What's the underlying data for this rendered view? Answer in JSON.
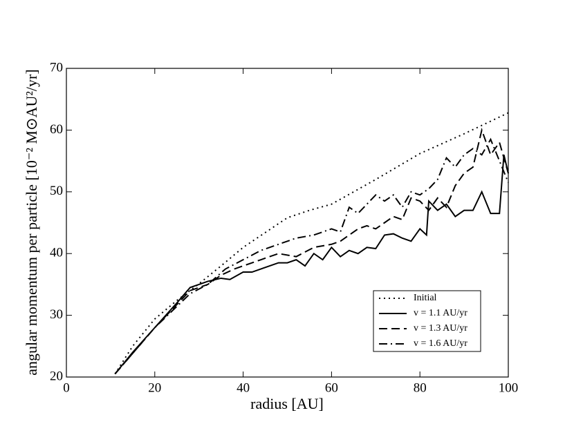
{
  "chart_data": {
    "type": "line",
    "xlabel": "radius [AU]",
    "ylabel": "angular momentum per particle [10⁻² M⊙AU²/yr]",
    "xlim": [
      0,
      100
    ],
    "xticks": [
      0,
      20,
      40,
      60,
      80,
      100
    ],
    "ylim": [
      20,
      70
    ],
    "yticks": [
      20,
      30,
      40,
      50,
      60,
      70
    ],
    "legend": "lower right",
    "series": [
      {
        "name": "Initial",
        "color": "#000000",
        "dash": "dotted",
        "x": [
          11,
          15,
          20,
          25,
          30,
          35,
          40,
          45,
          50,
          55,
          60,
          65,
          70,
          75,
          80,
          85,
          90,
          95,
          100
        ],
        "values": [
          20.5,
          25.0,
          29.4,
          32.4,
          35.1,
          38.0,
          41.0,
          43.4,
          45.8,
          47.0,
          48.0,
          50.0,
          52.0,
          54.1,
          56.2,
          57.8,
          59.4,
          61.1,
          62.8
        ]
      },
      {
        "name": "v = 1.1 AU/yr",
        "color": "#000000",
        "dash": "solid",
        "x": [
          11,
          15,
          20,
          25,
          28,
          30,
          32,
          35,
          37,
          40,
          42,
          44,
          46,
          48,
          50,
          52,
          54,
          56,
          58,
          60,
          62,
          64,
          66,
          68,
          70,
          72,
          74,
          76,
          78,
          80,
          81.5,
          82,
          84,
          86,
          88,
          90,
          92,
          94,
          96,
          98,
          99,
          100
        ],
        "values": [
          20.5,
          24,
          28,
          32,
          34.5,
          35,
          35.5,
          36,
          35.8,
          37,
          37,
          37.5,
          38,
          38.5,
          38.5,
          39,
          38,
          40,
          39,
          41,
          39.5,
          40.5,
          40,
          41,
          40.8,
          43,
          43.2,
          42.5,
          42,
          44,
          43,
          48.5,
          47,
          48,
          46,
          47,
          47,
          50,
          46.5,
          46.5,
          56,
          53
        ]
      },
      {
        "name": "v = 1.3 AU/yr",
        "color": "#000000",
        "dash": "dashed",
        "x": [
          11,
          20,
          28,
          32,
          35,
          38,
          40,
          44,
          48,
          52,
          56,
          60,
          62,
          64,
          66,
          68,
          70,
          72,
          74,
          76,
          78,
          80,
          82,
          84,
          86,
          88,
          90,
          92,
          94,
          96,
          98,
          100
        ],
        "values": [
          20.5,
          28,
          34,
          35,
          36.5,
          37.5,
          38,
          39,
          40,
          39.5,
          41,
          41.5,
          42,
          43,
          44,
          44.5,
          44,
          45,
          46,
          45.5,
          49,
          48.5,
          47,
          49,
          47.5,
          51,
          53,
          54,
          60,
          56,
          58,
          53
        ]
      },
      {
        "name": "v = 1.6 AU/yr",
        "color": "#000000",
        "dash": "dashdot",
        "x": [
          11,
          20,
          28,
          32,
          36,
          40,
          44,
          48,
          52,
          56,
          60,
          62,
          64,
          66,
          68,
          70,
          72,
          74,
          76,
          78,
          80,
          82,
          84,
          86,
          88,
          90,
          92,
          94,
          96,
          98,
          100
        ],
        "values": [
          20.5,
          28,
          33.5,
          35,
          37.5,
          39,
          40.5,
          41.5,
          42.5,
          43,
          44,
          43.5,
          47.5,
          46.5,
          48,
          49.5,
          48.5,
          49.5,
          47.5,
          50,
          49.5,
          50.5,
          52,
          55.5,
          54,
          56,
          57,
          56,
          58.5,
          55,
          51.5
        ]
      }
    ]
  }
}
